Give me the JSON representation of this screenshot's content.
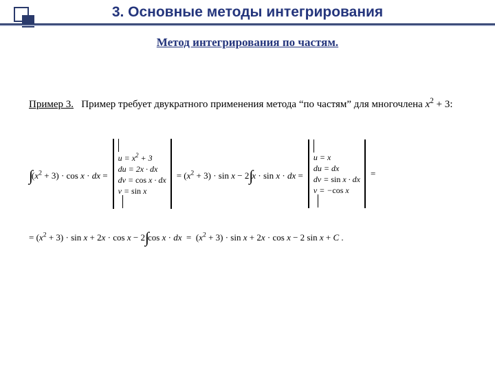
{
  "colors": {
    "accent": "#24357c",
    "strip_dark": "#2a3a6b",
    "strip_light": "#b9c2db",
    "text": "#000000",
    "background": "#ffffff"
  },
  "typography": {
    "title_family": "Arial",
    "title_size_pt": 16,
    "title_weight": "bold",
    "body_family": "Times New Roman",
    "body_size_pt": 11,
    "math_size_pt": 10
  },
  "title": "3. Основные методы интегрирования",
  "subtitle": "Метод интегрирования по частям.",
  "example": {
    "label": "Пример 3.",
    "text_before_poly": "Пример требует двукратного применения метода “по частям” для многочлена ",
    "polynomial_html": "<span class=\"it\">x</span><sup>2</sup> + 3",
    "text_after_poly": ":"
  },
  "equation_line1": {
    "lhs_html": "<span class=\"intsym\">∫</span>(<span class=\"it\">x</span><sup>2</sup> + 3) · cos <span class=\"it\">x</span> · <span class=\"it\">dx</span> =",
    "det1": {
      "rows_html": [
        "<span>u</span> = <span>x</span><sup>2</sup> + 3",
        "<span>du</span> = 2<span>x</span> · <span>dx</span>",
        "<span>dv</span> = <span class=\"rm\">cos</span> <span>x</span> · <span>dx</span>",
        "<span>v</span> = <span class=\"rm\">sin</span> <span>x</span>"
      ]
    },
    "mid_html": "= (<span class=\"it\">x</span><sup>2</sup> + 3) · sin <span class=\"it\">x</span> − 2<span class=\"intsym\">∫</span><span class=\"it\">x</span> · sin <span class=\"it\">x</span> · <span class=\"it\">dx</span> =",
    "det2": {
      "rows_html": [
        "<span>u</span> = <span>x</span>",
        "<span>du</span> = <span>dx</span>",
        "<span>dv</span> = <span class=\"rm\">sin</span> <span>x</span> · <span>dx</span>",
        "<span>v</span> = −<span class=\"rm\">cos</span> <span>x</span>"
      ]
    },
    "tail": "="
  },
  "equation_line2_html": "= (<span class=\"it\">x</span><sup>2</sup> + 3) · sin <span class=\"it\">x</span> + 2<span class=\"it\">x</span> · cos <span class=\"it\">x</span> − 2<span class=\"intsym\">∫</span>cos <span class=\"it\">x</span> · <span class=\"it\">dx</span> &nbsp;=&nbsp; (<span class=\"it\">x</span><sup>2</sup> + 3) · sin <span class=\"it\">x</span> + 2<span class=\"it\">x</span> · cos <span class=\"it\">x</span> − 2 sin <span class=\"it\">x</span> + <span class=\"it\">C</span> ."
}
